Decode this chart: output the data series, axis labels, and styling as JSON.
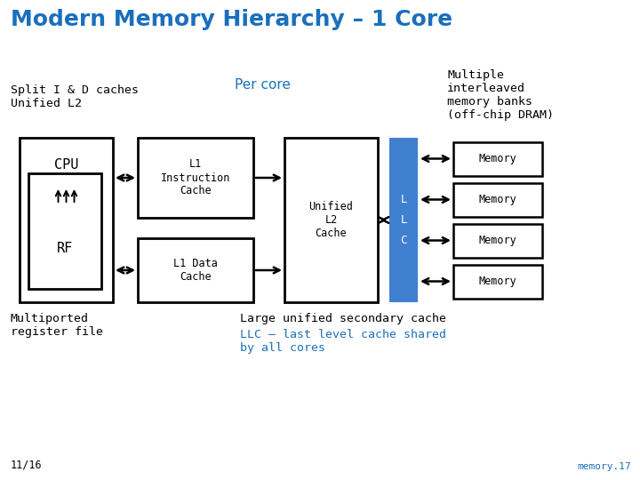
{
  "title": "Modern Memory Hierarchy – 1 Core",
  "title_color": "#1a6fbd",
  "title_fontsize": 18,
  "bg_color": "#ffffff",
  "label_per_core": "Per core",
  "label_per_core_color": "#1a6fbd",
  "label_split": "Split I & D caches\nUnified L2",
  "label_multiple": "Multiple\ninterleaved\nmemory banks\n(off-chip DRAM)",
  "label_multiported": "Multiported\nregister file",
  "label_llc_black": "Large unified secondary cache",
  "label_llc_blue": "LLC – last level cache shared\nby all cores",
  "label_llc_blue_color": "#1a6fbd",
  "slide_number": "11/16",
  "slide_ref": "memory.17",
  "llc_fill": "#4080d0",
  "llc_text_color": "#ffffff"
}
